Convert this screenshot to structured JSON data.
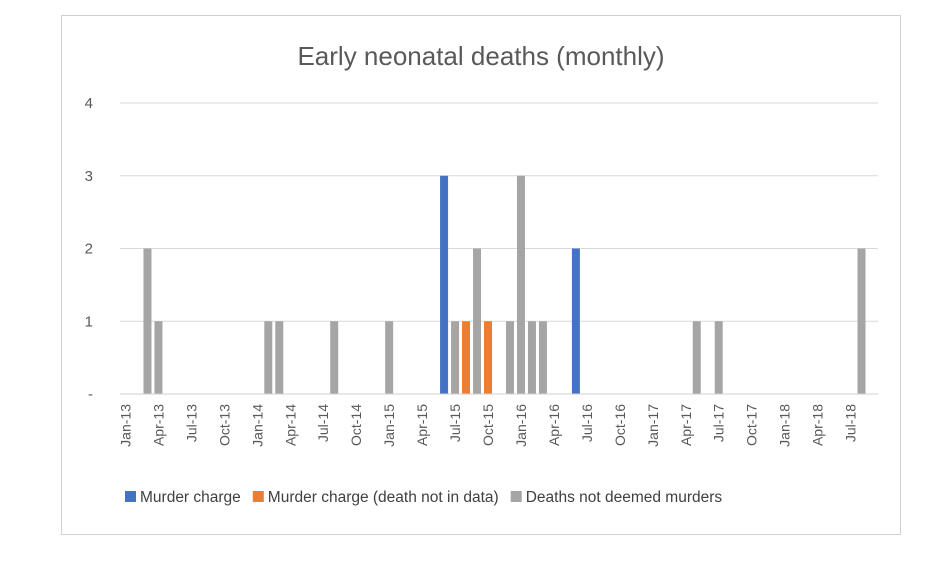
{
  "chart_data": {
    "type": "bar",
    "title": "Early neonatal deaths (monthly)",
    "xlabel": "",
    "ylabel": "",
    "ylim": [
      0,
      4
    ],
    "y_ticks": [
      {
        "value": 0,
        "label": "-"
      },
      {
        "value": 1,
        "label": "1"
      },
      {
        "value": 2,
        "label": "2"
      },
      {
        "value": 3,
        "label": "3"
      },
      {
        "value": 4,
        "label": "4"
      }
    ],
    "grid": true,
    "legend_position": "bottom",
    "x_start": "2013-01",
    "x_end": "2018-09",
    "x_tick_labels": [
      "Jan-13",
      "Apr-13",
      "Jul-13",
      "Oct-13",
      "Jan-14",
      "Apr-14",
      "Jul-14",
      "Oct-14",
      "Jan-15",
      "Apr-15",
      "Jul-15",
      "Oct-15",
      "Jan-16",
      "Apr-16",
      "Jul-16",
      "Oct-16",
      "Jan-17",
      "Apr-17",
      "Jul-17",
      "Oct-17",
      "Jan-18",
      "Apr-18",
      "Jul-18"
    ],
    "series": [
      {
        "name": "Murder charge",
        "color": "#4472C4",
        "points": [
          {
            "month": "2015-06",
            "value": 3
          },
          {
            "month": "2016-06",
            "value": 2
          }
        ]
      },
      {
        "name": "Murder charge (death not in data)",
        "color": "#ED7D31",
        "points": [
          {
            "month": "2015-08",
            "value": 1
          },
          {
            "month": "2015-10",
            "value": 1
          }
        ]
      },
      {
        "name": "Deaths not deemed murders",
        "color": "#A5A5A5",
        "points": [
          {
            "month": "2013-03",
            "value": 2
          },
          {
            "month": "2013-04",
            "value": 1
          },
          {
            "month": "2014-02",
            "value": 1
          },
          {
            "month": "2014-03",
            "value": 1
          },
          {
            "month": "2014-08",
            "value": 1
          },
          {
            "month": "2015-01",
            "value": 1
          },
          {
            "month": "2015-07",
            "value": 1
          },
          {
            "month": "2015-09",
            "value": 2
          },
          {
            "month": "2015-12",
            "value": 1
          },
          {
            "month": "2016-01",
            "value": 3
          },
          {
            "month": "2016-02",
            "value": 1
          },
          {
            "month": "2016-03",
            "value": 1
          },
          {
            "month": "2017-05",
            "value": 1
          },
          {
            "month": "2017-07",
            "value": 1
          },
          {
            "month": "2018-08",
            "value": 2
          }
        ]
      }
    ]
  }
}
